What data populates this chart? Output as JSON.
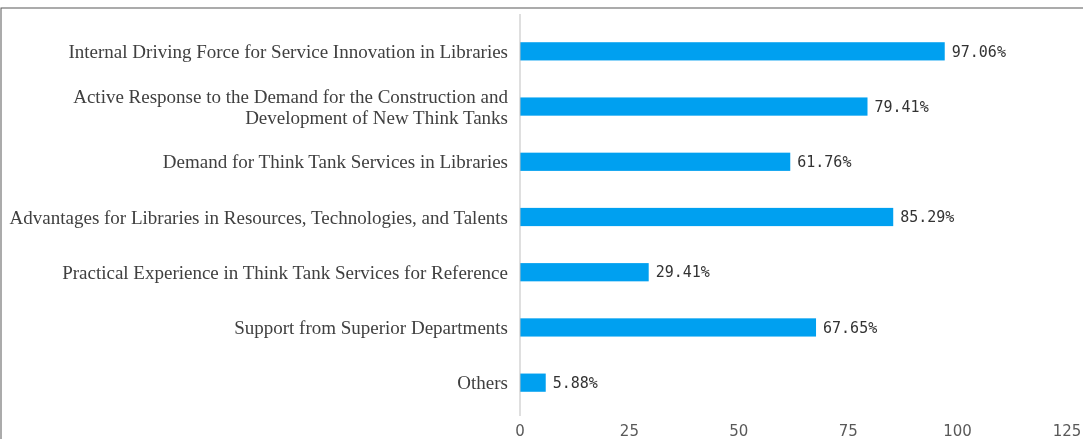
{
  "chart_data": {
    "type": "bar",
    "orientation": "horizontal",
    "categories": [
      "Internal Driving Force for Service Innovation in Libraries",
      "Active Response to the Demand for the Construction and Development of New Think Tanks",
      "Demand for Think Tank Services in Libraries",
      "Advantages for Libraries in Resources, Technologies, and Talents",
      "Practical Experience in Think Tank Services for Reference",
      "Support from Superior Departments",
      "Others"
    ],
    "values": [
      97.06,
      79.41,
      61.76,
      85.29,
      29.41,
      67.65,
      5.88
    ],
    "value_labels": [
      "97.06%",
      "79.41%",
      "61.76%",
      "85.29%",
      "29.41%",
      "67.65%",
      "5.88%"
    ],
    "color": "#00a0f0",
    "xlim": [
      0,
      125
    ],
    "xticks": [
      0,
      25,
      50,
      75,
      100,
      125
    ],
    "grid": false
  }
}
